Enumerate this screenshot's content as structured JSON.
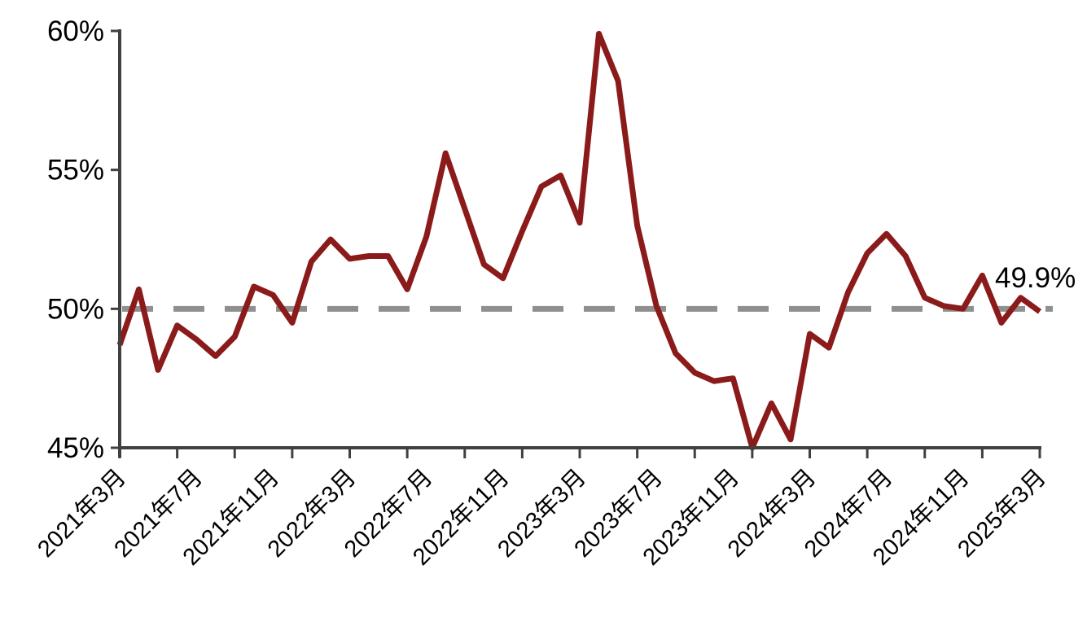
{
  "chart_data": {
    "type": "line",
    "title": "",
    "categories": [
      "2021年3月",
      "2021年4月",
      "2021年5月",
      "2021年6月",
      "2021年7月",
      "2021年8月",
      "2021年9月",
      "2021年10月",
      "2021年11月",
      "2021年12月",
      "2022年1月",
      "2022年2月",
      "2022年3月",
      "2022年4月",
      "2022年5月",
      "2022年6月",
      "2022年7月",
      "2022年8月",
      "2022年9月",
      "2022年10月",
      "2022年11月",
      "2022年12月",
      "2023年1月",
      "2023年2月",
      "2023年3月",
      "2023年4月",
      "2023年5月",
      "2023年6月",
      "2023年7月",
      "2023年8月",
      "2023年9月",
      "2023年10月",
      "2023年11月",
      "2023年12月",
      "2024年1月",
      "2024年2月",
      "2024年3月",
      "2024年4月",
      "2024年5月",
      "2024年6月",
      "2024年7月",
      "2024年8月",
      "2024年9月",
      "2024年10月",
      "2024年11月",
      "2024年12月",
      "2025年1月",
      "2025年2月",
      "2025年3月"
    ],
    "values": [
      48.7,
      50.7,
      47.8,
      49.4,
      48.9,
      48.3,
      49.0,
      50.8,
      50.5,
      49.5,
      51.7,
      52.5,
      51.8,
      51.9,
      51.9,
      50.7,
      52.6,
      55.6,
      53.6,
      51.6,
      51.1,
      52.8,
      54.4,
      54.8,
      53.1,
      59.9,
      58.2,
      53.0,
      50.1,
      48.4,
      47.7,
      47.4,
      47.5,
      45.0,
      46.6,
      45.3,
      49.1,
      48.6,
      50.6,
      52.0,
      52.7,
      51.9,
      50.4,
      50.1,
      50.0,
      51.2,
      49.5,
      50.4,
      49.9
    ],
    "x_tick_labels": [
      "2021年3月",
      "2021年7月",
      "2021年11月",
      "2022年3月",
      "2022年7月",
      "2022年11月",
      "2023年3月",
      "2023年7月",
      "2023年11月",
      "2024年3月",
      "2024年7月",
      "2024年11月",
      "2025年3月"
    ],
    "y_tick_labels": [
      "60%",
      "55%",
      "45%",
      "50%"
    ],
    "ylim": [
      45,
      60
    ],
    "y_tick_interval": 5,
    "x_label_interval_months": 4,
    "x_minor_tick_interval_months": 3,
    "reference_line_value": 50,
    "end_annotation": "49.9%",
    "grid": "off",
    "legend": "off",
    "colors": {
      "line": "#8B1A1A",
      "reference_line": "#8F8F8F",
      "axis": "#404040",
      "text": "#000000",
      "background": "#FFFFFF"
    }
  }
}
